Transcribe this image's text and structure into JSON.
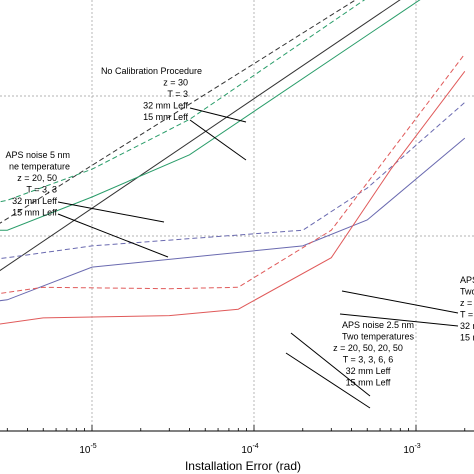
{
  "chart_data": {
    "type": "line",
    "xlabel": "Installation Error (rad)",
    "ylabel": "",
    "title": "",
    "x_scale": "log",
    "xlim": [
      1e-06,
      0.002
    ],
    "y_scale": "log",
    "ylim": [
      1,
      1000
    ],
    "grid": true,
    "x_ticks": [
      {
        "value": 1e-05,
        "base": "10",
        "exp": "-5"
      },
      {
        "value": 0.0001,
        "base": "10",
        "exp": "-4"
      },
      {
        "value": 0.001,
        "base": "10",
        "exp": "-3"
      }
    ],
    "series": [
      {
        "color": "#333333",
        "dash": true,
        "x": [
          1e-06,
          0.002
        ],
        "y": [
          6.0,
          1500
        ]
      },
      {
        "color": "#333333",
        "dash": false,
        "x": [
          1e-06,
          0.002
        ],
        "y": [
          2.6,
          1000
        ]
      },
      {
        "color": "#2a9d6a",
        "dash": true,
        "x": [
          1e-06,
          3e-06,
          1e-05,
          4e-05,
          0.002
        ],
        "y": [
          14,
          18,
          30,
          68,
          1500
        ]
      },
      {
        "color": "#2a9d6a",
        "dash": false,
        "x": [
          1e-06,
          3e-06,
          1e-05,
          4e-05,
          0.002
        ],
        "y": [
          11,
          11,
          19,
          38,
          800
        ]
      },
      {
        "color": "#6a6ab0",
        "dash": true,
        "x": [
          1e-06,
          3e-06,
          1e-05,
          0.0002,
          0.0005,
          0.002
        ],
        "y": [
          6,
          7,
          8.5,
          11,
          22,
          90
        ]
      },
      {
        "color": "#6a6ab0",
        "dash": false,
        "x": [
          1e-06,
          3e-06,
          1e-05,
          0.0002,
          0.0005,
          0.002
        ],
        "y": [
          3.0,
          3.5,
          6.0,
          8.5,
          13,
          50
        ]
      },
      {
        "color": "#e05a5a",
        "dash": true,
        "x": [
          1e-06,
          5e-06,
          3e-05,
          8e-05,
          0.0003,
          0.0007,
          0.002
        ],
        "y": [
          3.3,
          4.3,
          4.2,
          4.3,
          11,
          40,
          200
        ]
      },
      {
        "color": "#e05a5a",
        "dash": false,
        "x": [
          1e-06,
          5e-06,
          3e-05,
          8e-05,
          0.0003,
          0.0007,
          0.002
        ],
        "y": [
          2.0,
          2.6,
          2.7,
          3.0,
          7.0,
          30,
          150
        ]
      }
    ],
    "annotations": [
      {
        "lines": [
          "No Calibration Procedure",
          "z = 30",
          "T = 3",
          "32 mm Leff",
          "15 mm Leff"
        ]
      },
      {
        "lines": [
          "APS noise 5 nm",
          "ne temperature",
          "z = 20, 50",
          "T = 3, 3",
          "32 mm Leff",
          "15 mm Leff"
        ]
      },
      {
        "lines": [
          "APS noise 2.5 nm",
          "Two temperatures",
          "z = 20, 50, 20, 50",
          "T = 3, 3, 6, 6",
          "32 mm Leff",
          "15 mm Leff"
        ]
      },
      {
        "lines": [
          "APS",
          "Two",
          "z =",
          "T =",
          "32 m",
          "15 m"
        ]
      }
    ]
  }
}
